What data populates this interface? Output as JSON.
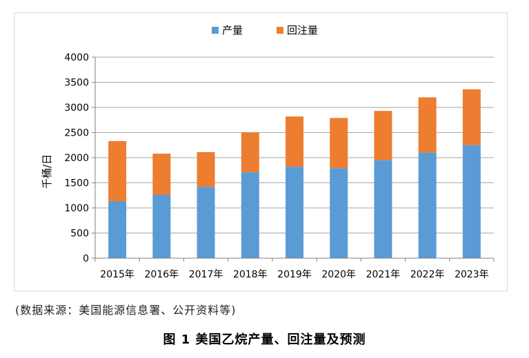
{
  "chart_data": {
    "type": "bar",
    "stacked": true,
    "categories": [
      "2015年",
      "2016年",
      "2017年",
      "2018年",
      "2019年",
      "2020年",
      "2021年",
      "2022年",
      "2023年"
    ],
    "series": [
      {
        "name": "产量",
        "color": "#5b9bd5",
        "values": [
          1130,
          1260,
          1420,
          1710,
          1820,
          1790,
          1950,
          2100,
          2250
        ]
      },
      {
        "name": "回注量",
        "color": "#ed7d31",
        "values": [
          1200,
          820,
          690,
          790,
          1000,
          1000,
          980,
          1100,
          1110
        ]
      }
    ],
    "ylabel": "千桶/日",
    "ylim": [
      0,
      4000
    ],
    "yticks": [
      0,
      500,
      1000,
      1500,
      2000,
      2500,
      3000,
      3500,
      4000
    ],
    "grid": true,
    "legend_position": "top"
  },
  "source_note": "(数据来源：美国能源信息署、公开资料等)",
  "figure_caption": "图 1  美国乙烷产量、回注量及预测"
}
